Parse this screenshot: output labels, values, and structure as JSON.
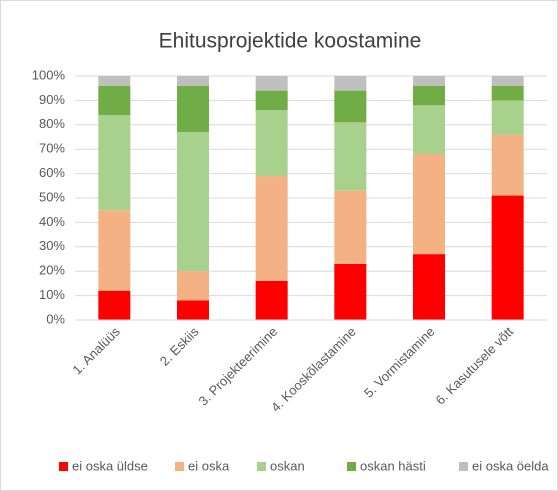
{
  "chart_data": {
    "type": "stacked_bar",
    "title": "Ehitusprojektide koostamine",
    "categories": [
      "1. Analüüs",
      "2. Eskiis",
      "3. Projekteerimine",
      "4. Kooskõlastamine",
      "5. Vormistamine",
      "6. Kasutusele võtt"
    ],
    "series": [
      {
        "name": "ei oska üldse",
        "color": "#ff0000",
        "values": [
          12,
          8,
          16,
          23,
          27,
          51
        ]
      },
      {
        "name": "ei oska",
        "color": "#f4b183",
        "values": [
          33,
          12,
          43,
          30,
          41,
          25
        ]
      },
      {
        "name": "oskan",
        "color": "#a9d18e",
        "values": [
          39,
          57,
          27,
          28,
          20,
          14
        ]
      },
      {
        "name": "oskan hästi",
        "color": "#70ad47",
        "values": [
          12,
          19,
          8,
          13,
          8,
          6
        ]
      },
      {
        "name": "ei oska öelda",
        "color": "#bfbfbf",
        "values": [
          4,
          4,
          6,
          6,
          4,
          4
        ]
      }
    ],
    "ylim": [
      0,
      100
    ],
    "yticks": [
      {
        "value": 0,
        "label": "0%"
      },
      {
        "value": 10,
        "label": "10%"
      },
      {
        "value": 20,
        "label": "20%"
      },
      {
        "value": 30,
        "label": "30%"
      },
      {
        "value": 40,
        "label": "40%"
      },
      {
        "value": 50,
        "label": "50%"
      },
      {
        "value": 60,
        "label": "60%"
      },
      {
        "value": 70,
        "label": "70%"
      },
      {
        "value": 80,
        "label": "80%"
      },
      {
        "value": 90,
        "label": "90%"
      },
      {
        "value": 100,
        "label": "100%"
      }
    ],
    "grid": true,
    "legend": "bottom"
  }
}
